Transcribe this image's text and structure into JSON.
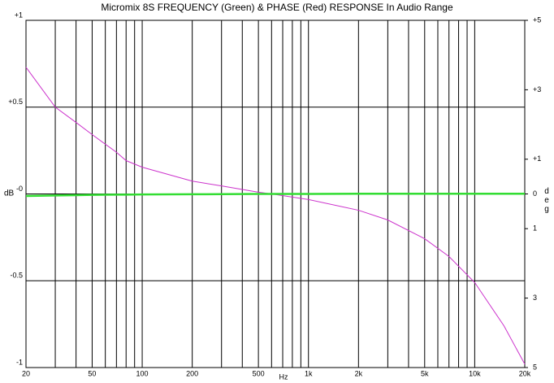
{
  "chart_data": {
    "type": "line",
    "title": "Micromix 8S  FREQUENCY (Green) &  PHASE (Red) RESPONSE In Audio Range",
    "xlabel": "Hz",
    "ylabel": "dB",
    "y2label": "deg",
    "xscale": "log",
    "xlim": [
      20,
      20000
    ],
    "xticks": [
      20,
      50,
      100,
      200,
      500,
      {
        "value": 1000,
        "label": "1k"
      },
      {
        "value": 2000,
        "label": "2k"
      },
      {
        "value": 5000,
        "label": "5k"
      },
      {
        "value": 10000,
        "label": "10k"
      },
      {
        "value": 20000,
        "label": "20k"
      }
    ],
    "xminor": [
      30,
      40,
      60,
      70,
      80,
      90,
      300,
      400,
      600,
      700,
      800,
      900,
      3000,
      4000,
      6000,
      7000,
      8000,
      9000
    ],
    "ylim": [
      -1,
      1
    ],
    "yticks": [
      {
        "value": 1,
        "label": "+1"
      },
      {
        "value": 0.5,
        "label": "+0.5"
      },
      {
        "value": 0,
        "label": "-0"
      },
      {
        "value": -0.5,
        "label": "-0.5"
      },
      -1
    ],
    "y2lim": [
      -5,
      5
    ],
    "y2ticks": [
      {
        "value": 5,
        "label": "+5"
      },
      {
        "value": 3,
        "label": "+3"
      },
      {
        "value": 1,
        "label": "+1"
      },
      0,
      {
        "value": -1,
        "label": "1"
      },
      {
        "value": -3,
        "label": "3"
      },
      {
        "value": -5,
        "label": "5"
      }
    ],
    "grid": true,
    "x": [
      20,
      30,
      40,
      50,
      70,
      80,
      100,
      200,
      300,
      500,
      600,
      1000,
      2000,
      3000,
      5000,
      7000,
      10000,
      15000,
      20000
    ],
    "series": [
      {
        "color": "#cc33cc",
        "axis": "y2",
        "values": [
          3.65,
          2.5,
          2.06,
          1.71,
          1.2,
          0.96,
          0.77,
          0.37,
          0.23,
          0.05,
          0,
          -0.16,
          -0.47,
          -0.75,
          -1.29,
          -1.8,
          -2.55,
          -3.8,
          -4.9
        ]
      },
      {
        "color": "#33dd33",
        "values": [
          -0.012,
          -0.009,
          -0.007,
          -0.005,
          -0.004,
          -0.004,
          -0.003,
          -0.002,
          -0.001,
          0,
          0,
          0,
          0.001,
          0.001,
          0.001,
          0.001,
          0.001,
          0.001,
          0.001
        ]
      }
    ]
  }
}
